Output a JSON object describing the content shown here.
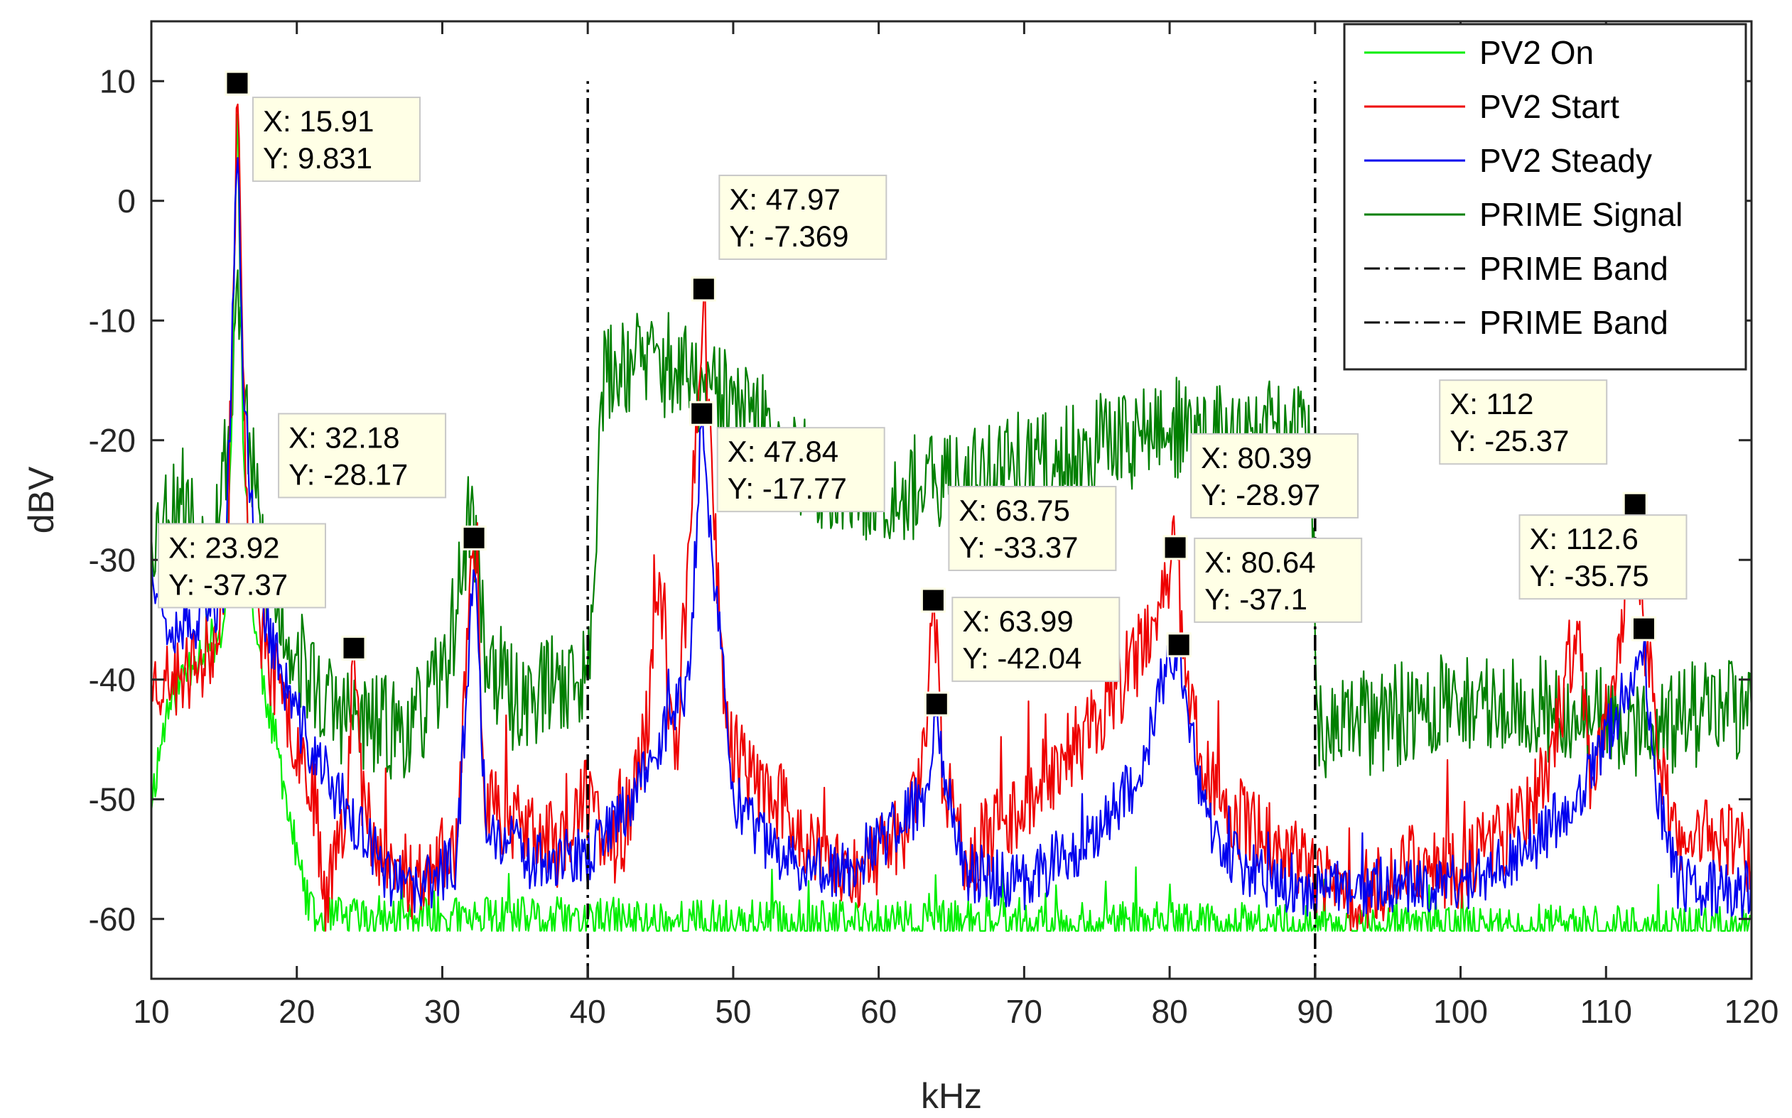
{
  "chart_data": {
    "type": "line",
    "xlabel": "kHz",
    "ylabel": "dBV",
    "xlim": [
      10,
      120
    ],
    "ylim": [
      -65,
      15
    ],
    "xticks": [
      10,
      20,
      30,
      40,
      50,
      60,
      70,
      80,
      90,
      100,
      110,
      120
    ],
    "yticks": [
      10,
      0,
      -10,
      -20,
      -30,
      -40,
      -50,
      -60
    ],
    "grid": false,
    "legend_position": "top-right",
    "series": [
      {
        "name": "PV2 On",
        "color": "#00ee00",
        "style": "solid",
        "floor": -61,
        "profile": [
          [
            10,
            -50
          ],
          [
            11,
            -43
          ],
          [
            12,
            -40
          ],
          [
            13,
            -38
          ],
          [
            14,
            -37
          ],
          [
            15,
            -36
          ],
          [
            15.5,
            -20
          ],
          [
            15.91,
            9.5
          ],
          [
            16.3,
            -20
          ],
          [
            17,
            -35
          ],
          [
            18,
            -42
          ],
          [
            19,
            -48
          ],
          [
            20,
            -55
          ],
          [
            21,
            -60
          ],
          [
            120,
            -61
          ]
        ],
        "noise": 2,
        "spike_prob": 0.03,
        "spike_amp": 4,
        "seed": 11
      },
      {
        "name": "PV2 Start",
        "color": "#ee0000",
        "style": "solid",
        "floor": -61,
        "profile": [
          [
            10,
            -40
          ],
          [
            12,
            -40
          ],
          [
            14,
            -38
          ],
          [
            15.3,
            -30
          ],
          [
            15.91,
            9.831
          ],
          [
            16.5,
            -25
          ],
          [
            17.5,
            -36
          ],
          [
            19,
            -42
          ],
          [
            21,
            -48
          ],
          [
            22,
            -58
          ],
          [
            23.4,
            -50
          ],
          [
            23.92,
            -37.37
          ],
          [
            24.5,
            -50
          ],
          [
            26,
            -55
          ],
          [
            28,
            -57
          ],
          [
            31,
            -54
          ],
          [
            32.18,
            -28.17
          ],
          [
            33,
            -50
          ],
          [
            35,
            -52
          ],
          [
            38,
            -54
          ],
          [
            40,
            -50
          ],
          [
            42,
            -55
          ],
          [
            44,
            -45
          ],
          [
            45,
            -32
          ],
          [
            46,
            -48
          ],
          [
            47.2,
            -25
          ],
          [
            47.97,
            -7.369
          ],
          [
            48.6,
            -25
          ],
          [
            49.5,
            -44
          ],
          [
            51,
            -48
          ],
          [
            53,
            -50
          ],
          [
            56,
            -55
          ],
          [
            59,
            -56
          ],
          [
            62,
            -52
          ],
          [
            63.2,
            -45
          ],
          [
            63.75,
            -33.37
          ],
          [
            64.4,
            -48
          ],
          [
            66,
            -55
          ],
          [
            70,
            -50
          ],
          [
            74,
            -45
          ],
          [
            77,
            -40
          ],
          [
            79,
            -35
          ],
          [
            80.39,
            -28.97
          ],
          [
            81.2,
            -40
          ],
          [
            82.5,
            -48
          ],
          [
            85,
            -52
          ],
          [
            88,
            -54
          ],
          [
            90,
            -57
          ],
          [
            93,
            -58
          ],
          [
            97,
            -55
          ],
          [
            100,
            -56
          ],
          [
            103,
            -53
          ],
          [
            106,
            -48
          ],
          [
            108,
            -35
          ],
          [
            109,
            -50
          ],
          [
            110.5,
            -40
          ],
          [
            112,
            -25.37
          ],
          [
            112.6,
            -35.75
          ],
          [
            113.5,
            -45
          ],
          [
            115,
            -55
          ],
          [
            117,
            -52
          ],
          [
            120,
            -55
          ]
        ],
        "noise": 3.5,
        "spike_prob": 0.05,
        "spike_amp": 6,
        "seed": 23
      },
      {
        "name": "PV2 Steady",
        "color": "#0000ee",
        "style": "solid",
        "floor": -61,
        "profile": [
          [
            10,
            -30
          ],
          [
            11,
            -35
          ],
          [
            13,
            -36
          ],
          [
            15,
            -33
          ],
          [
            15.5,
            -15
          ],
          [
            15.91,
            5
          ],
          [
            16.4,
            -18
          ],
          [
            17.5,
            -33
          ],
          [
            19,
            -40
          ],
          [
            21,
            -46
          ],
          [
            23,
            -50
          ],
          [
            26,
            -56
          ],
          [
            28,
            -58
          ],
          [
            31,
            -55
          ],
          [
            32.18,
            -30
          ],
          [
            33,
            -52
          ],
          [
            36,
            -55
          ],
          [
            40,
            -55
          ],
          [
            43,
            -50
          ],
          [
            45,
            -45
          ],
          [
            47,
            -40
          ],
          [
            47.84,
            -17.77
          ],
          [
            48.8,
            -33
          ],
          [
            50,
            -50
          ],
          [
            53,
            -55
          ],
          [
            58,
            -56
          ],
          [
            63.2,
            -50
          ],
          [
            63.99,
            -42.04
          ],
          [
            64.8,
            -50
          ],
          [
            66,
            -56
          ],
          [
            70,
            -57
          ],
          [
            74,
            -54
          ],
          [
            78,
            -48
          ],
          [
            79.5,
            -40
          ],
          [
            80.64,
            -37.1
          ],
          [
            81.5,
            -44
          ],
          [
            82.5,
            -52
          ],
          [
            85,
            -56
          ],
          [
            90,
            -58
          ],
          [
            95,
            -57
          ],
          [
            100,
            -57
          ],
          [
            105,
            -54
          ],
          [
            109,
            -48
          ],
          [
            111,
            -42
          ],
          [
            112.6,
            -37
          ],
          [
            113.5,
            -50
          ],
          [
            115,
            -57
          ],
          [
            120,
            -58
          ]
        ],
        "noise": 2.5,
        "spike_prob": 0.03,
        "spike_amp": 4,
        "seed": 37
      },
      {
        "name": "PRIME Signal",
        "color": "#007f00",
        "style": "solid",
        "floor": -61,
        "profile": [
          [
            10,
            -28
          ],
          [
            12,
            -24
          ],
          [
            14,
            -30
          ],
          [
            15.5,
            -18
          ],
          [
            15.91,
            -5
          ],
          [
            16.4,
            -18
          ],
          [
            18,
            -32
          ],
          [
            20,
            -38
          ],
          [
            22,
            -42
          ],
          [
            25,
            -44
          ],
          [
            28,
            -44
          ],
          [
            30,
            -40
          ],
          [
            31,
            -34
          ],
          [
            32,
            -25
          ],
          [
            33,
            -38
          ],
          [
            35,
            -42
          ],
          [
            38,
            -40
          ],
          [
            40,
            -40
          ],
          [
            41,
            -15
          ],
          [
            43,
            -13
          ],
          [
            46,
            -14
          ],
          [
            48,
            -16
          ],
          [
            50,
            -17
          ],
          [
            53,
            -20
          ],
          [
            56,
            -24
          ],
          [
            60,
            -24
          ],
          [
            64,
            -24
          ],
          [
            68,
            -22
          ],
          [
            72,
            -22
          ],
          [
            76,
            -20
          ],
          [
            80,
            -19
          ],
          [
            84,
            -20
          ],
          [
            88,
            -19
          ],
          [
            89.7,
            -20
          ],
          [
            90.2,
            -45
          ],
          [
            92,
            -44
          ],
          [
            96,
            -43
          ],
          [
            100,
            -42
          ],
          [
            104,
            -42
          ],
          [
            108,
            -43
          ],
          [
            112,
            -44
          ],
          [
            116,
            -43
          ],
          [
            120,
            -42
          ]
        ],
        "noise": 4.5,
        "spike_prob": 0.0,
        "spike_amp": 0,
        "seed": 53
      },
      {
        "name": "PRIME Band",
        "color": "#000000",
        "style": "dashdot",
        "x": 40,
        "y_range": [
          -65,
          10
        ]
      },
      {
        "name": "PRIME Band",
        "color": "#000000",
        "style": "dashdot",
        "x": 90,
        "y_range": [
          -65,
          10
        ]
      }
    ],
    "annotations": [
      {
        "x": 15.91,
        "y": 9.831,
        "label_x": "X: 15.91",
        "label_y": "Y: 9.831",
        "box": "right"
      },
      {
        "x": 23.92,
        "y": -37.37,
        "label_x": "X: 23.92",
        "label_y": "Y: -37.37",
        "box": "left-above"
      },
      {
        "x": 32.18,
        "y": -28.17,
        "label_x": "X: 32.18",
        "label_y": "Y: -28.17",
        "box": "left-above"
      },
      {
        "x": 47.97,
        "y": -7.369,
        "label_x": "X: 47.97",
        "label_y": "Y: -7.369",
        "box": "right-above"
      },
      {
        "x": 47.84,
        "y": -17.77,
        "label_x": "X: 47.84",
        "label_y": "Y: -17.77",
        "box": "right"
      },
      {
        "x": 63.75,
        "y": -33.37,
        "label_x": "X: 63.75",
        "label_y": "Y: -33.37",
        "box": "right-above"
      },
      {
        "x": 63.99,
        "y": -42.04,
        "label_x": "X: 63.99",
        "label_y": "Y: -42.04",
        "box": "right-above-near"
      },
      {
        "x": 80.39,
        "y": -28.97,
        "label_x": "X: 80.39",
        "label_y": "Y: -28.97",
        "box": "right-above"
      },
      {
        "x": 80.64,
        "y": -37.1,
        "label_x": "X: 80.64",
        "label_y": "Y: -37.1",
        "box": "right-above-near"
      },
      {
        "x": 112,
        "y": -25.37,
        "label_x": "X: 112",
        "label_y": "Y: -25.37",
        "box": "left-above"
      },
      {
        "x": 112.6,
        "y": -35.75,
        "label_x": "X: 112.6",
        "label_y": "Y: -35.75",
        "box": "left-above-near"
      }
    ]
  }
}
